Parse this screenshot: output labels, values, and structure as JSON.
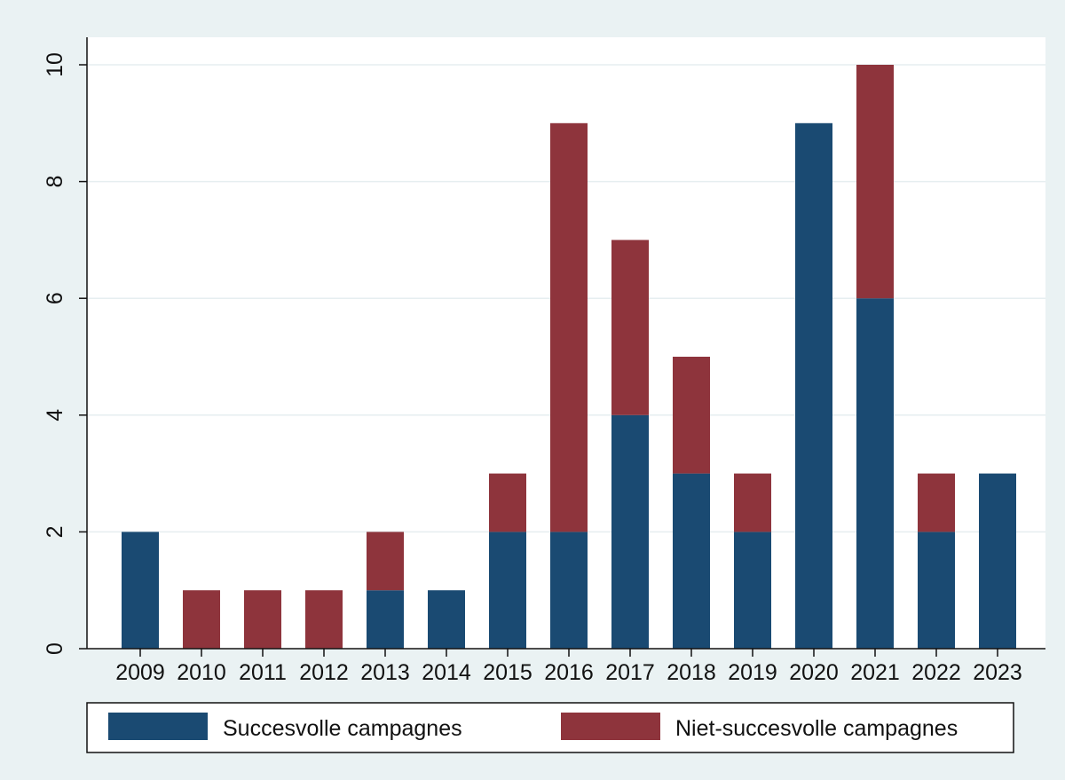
{
  "chart_data": {
    "type": "bar",
    "stacked": true,
    "categories": [
      "2009",
      "2010",
      "2011",
      "2012",
      "2013",
      "2014",
      "2015",
      "2016",
      "2017",
      "2018",
      "2019",
      "2020",
      "2021",
      "2022",
      "2023"
    ],
    "series": [
      {
        "name": "Succesvolle campagnes",
        "color": "#1a4a72",
        "values": [
          2,
          0,
          0,
          0,
          1,
          1,
          2,
          2,
          4,
          3,
          2,
          9,
          6,
          2,
          3
        ]
      },
      {
        "name": "Niet-succesvolle campagnes",
        "color": "#8e343c",
        "values": [
          0,
          1,
          1,
          1,
          1,
          0,
          1,
          7,
          3,
          2,
          1,
          0,
          4,
          1,
          0
        ]
      }
    ],
    "ylim": [
      0,
      10
    ],
    "yticks": [
      0,
      2,
      4,
      6,
      8,
      10
    ],
    "title": "",
    "xlabel": "",
    "ylabel": "",
    "grid": true,
    "legend_position": "bottom",
    "colors": {
      "outer_background": "#eaf2f3",
      "plot_background": "#ffffff",
      "gridline": "#e6eef0"
    }
  }
}
